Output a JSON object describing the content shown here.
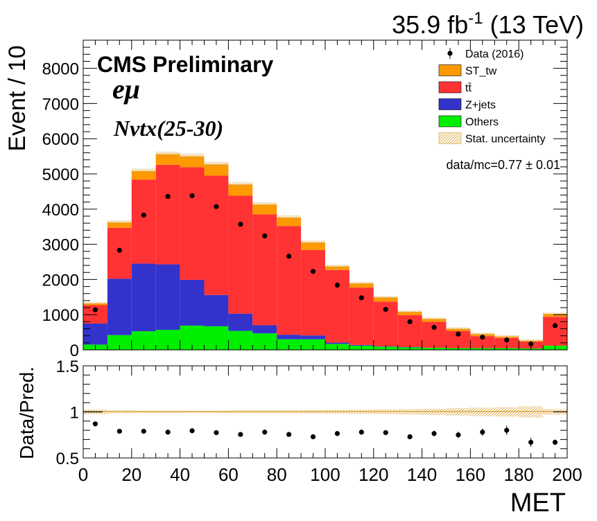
{
  "chart_data": {
    "type": "bar",
    "stacked": true,
    "lumi_label": "35.9 fb",
    "lumi_sup": "-1",
    "lumi_energy": " (13 TeV)",
    "cms_label": "CMS Preliminary",
    "channel_label": "eμ",
    "selection_label": "Nvtx(25-30)",
    "ratio_label": "data/mc=0.77 ± 0.01",
    "ylabel": "Event / 10",
    "xlabel": "MET",
    "ratio_ylabel": "Data/Pred.",
    "xlim": [
      0,
      200
    ],
    "ylim": [
      0,
      8800
    ],
    "ratio_ylim": [
      0.5,
      1.5
    ],
    "x_ticks": [
      "0",
      "20",
      "40",
      "60",
      "80",
      "100",
      "120",
      "140",
      "160",
      "180",
      "200"
    ],
    "y_ticks": [
      "0",
      "1000",
      "2000",
      "3000",
      "4000",
      "5000",
      "6000",
      "7000",
      "8000"
    ],
    "ratio_y_ticks": [
      "0.5",
      "1",
      "1.5"
    ],
    "bin_edges": [
      0,
      10,
      20,
      30,
      40,
      50,
      60,
      70,
      80,
      90,
      100,
      110,
      120,
      130,
      140,
      150,
      160,
      170,
      180,
      190,
      200
    ],
    "legend": {
      "position": "top-right",
      "entries": [
        {
          "label": "Data (2016)",
          "kind": "marker"
        },
        {
          "label": "ST_tw",
          "kind": "fill",
          "color": "#ff9900"
        },
        {
          "label": "tt̄",
          "kind": "fill",
          "color": "#ff3333"
        },
        {
          "label": "Z+jets",
          "kind": "fill",
          "color": "#3333cc"
        },
        {
          "label": "Others",
          "kind": "fill",
          "color": "#00ee00"
        },
        {
          "label": "Stat. uncertainty",
          "kind": "hatch",
          "color": "#d9a030"
        }
      ]
    },
    "series": [
      {
        "name": "Others",
        "color": "#00ee00",
        "values": [
          150,
          420,
          530,
          570,
          690,
          670,
          540,
          470,
          300,
          300,
          170,
          120,
          90,
          70,
          60,
          50,
          50,
          50,
          40,
          120
        ]
      },
      {
        "name": "Z+jets",
        "color": "#3333cc",
        "values": [
          600,
          1600,
          1920,
          1860,
          1300,
          890,
          490,
          230,
          130,
          110,
          40,
          20,
          10,
          10,
          0,
          0,
          0,
          0,
          0,
          0
        ]
      },
      {
        "name": "tt̄",
        "color": "#ff3333",
        "values": [
          520,
          1450,
          2390,
          2830,
          3200,
          3390,
          3350,
          3150,
          3090,
          2430,
          2060,
          1630,
          1270,
          910,
          740,
          490,
          340,
          290,
          200,
          820
        ]
      },
      {
        "name": "ST_tw",
        "color": "#ff9900",
        "values": [
          50,
          150,
          240,
          300,
          310,
          320,
          320,
          280,
          240,
          210,
          100,
          120,
          120,
          90,
          80,
          60,
          60,
          40,
          20,
          80
        ]
      }
    ],
    "data_series": {
      "name": "Data (2016)",
      "values": [
        1140,
        2830,
        3830,
        4360,
        4380,
        4070,
        3570,
        3240,
        2660,
        2230,
        1840,
        1480,
        1150,
        800,
        640,
        450,
        360,
        280,
        170,
        690
      ]
    },
    "ratio_values": [
      0.87,
      0.79,
      0.79,
      0.78,
      0.795,
      0.775,
      0.755,
      0.78,
      0.755,
      0.73,
      0.765,
      0.78,
      0.775,
      0.73,
      0.765,
      0.75,
      0.78,
      0.8,
      0.67,
      0.67
    ],
    "ratio_errors": [
      0.02,
      0.01,
      0.01,
      0.01,
      0.01,
      0.01,
      0.01,
      0.01,
      0.01,
      0.01,
      0.015,
      0.02,
      0.02,
      0.025,
      0.03,
      0.035,
      0.04,
      0.05,
      0.05,
      0.03
    ],
    "colors": {
      "data": "#000000",
      "unity_line": "#d9a030"
    }
  }
}
